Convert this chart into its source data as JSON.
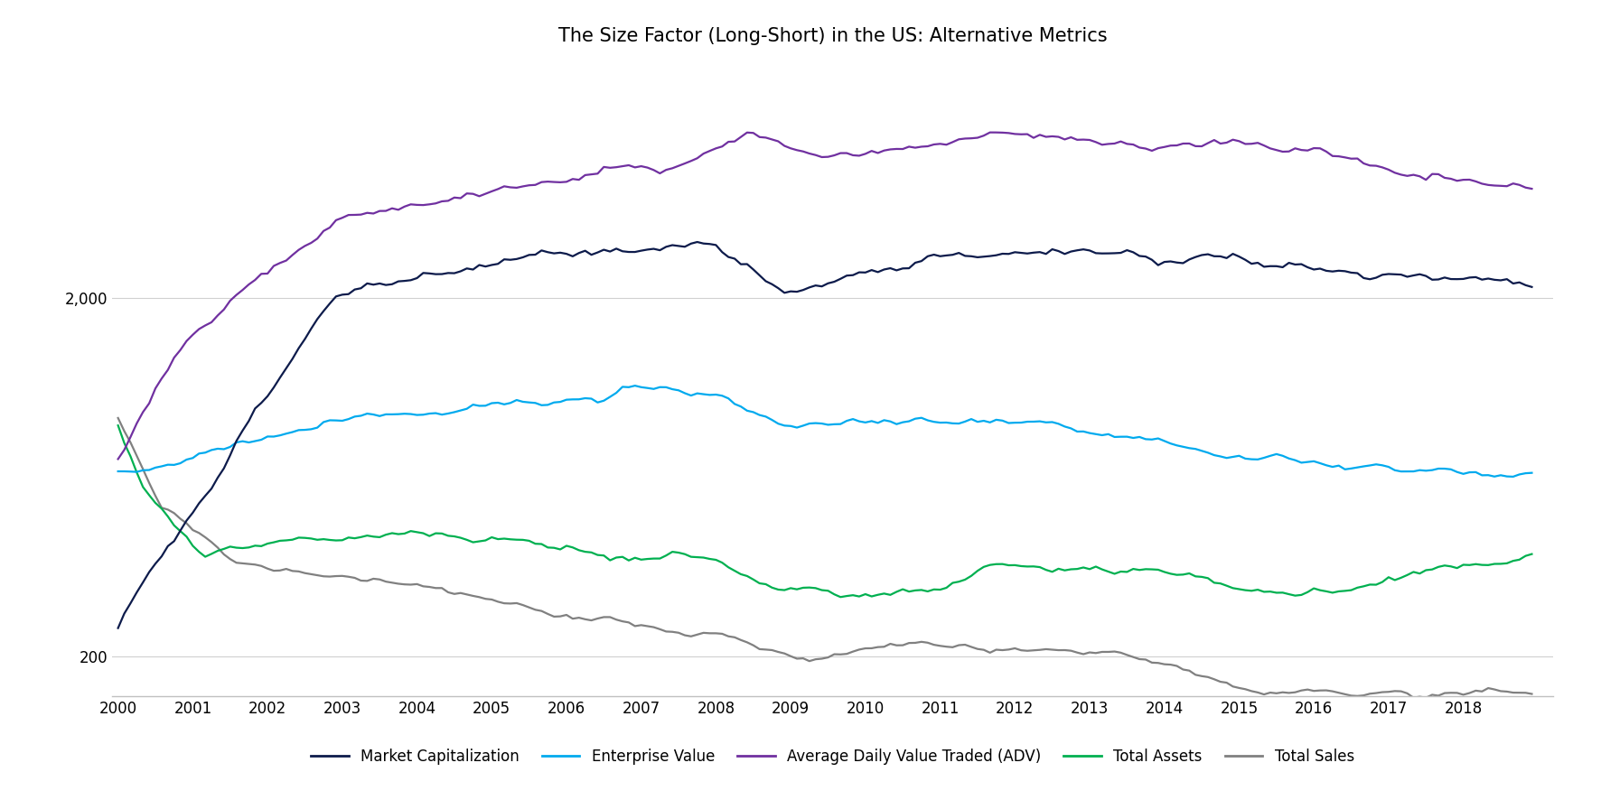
{
  "title": "The Size Factor (Long-Short) in the US: Alternative Metrics",
  "title_fontsize": 15,
  "figsize": [
    17.72,
    8.86
  ],
  "dpi": 100,
  "xlim_start": 1999.92,
  "xlim_end": 2019.2,
  "ylim_bottom": 155,
  "ylim_top": 9000,
  "yticks": [
    200,
    2000
  ],
  "ytick_labels": [
    "200",
    "2,000"
  ],
  "xticks": [
    2000,
    2001,
    2002,
    2003,
    2004,
    2005,
    2006,
    2007,
    2008,
    2009,
    2010,
    2011,
    2012,
    2013,
    2014,
    2015,
    2016,
    2017,
    2018
  ],
  "series": {
    "Market Capitalization": {
      "color": "#0d1b4b",
      "linewidth": 1.6,
      "zorder": 4
    },
    "Enterprise Value": {
      "color": "#00aaee",
      "linewidth": 1.6,
      "zorder": 3
    },
    "Average Daily Value Traded (ADV)": {
      "color": "#7030a0",
      "linewidth": 1.6,
      "zorder": 5
    },
    "Total Assets": {
      "color": "#00b050",
      "linewidth": 1.6,
      "zorder": 2
    },
    "Total Sales": {
      "color": "#808080",
      "linewidth": 1.6,
      "zorder": 1
    }
  },
  "legend_fontsize": 12,
  "background_color": "#ffffff",
  "tick_fontsize": 12,
  "bottom_axis_color": "#c0c0c0",
  "gridline_color": "#d0d0d0"
}
